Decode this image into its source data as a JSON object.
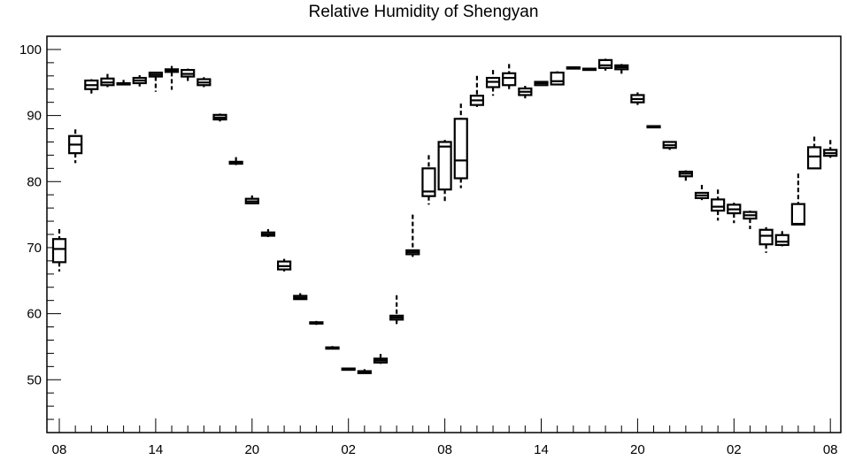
{
  "chart_data": {
    "type": "box",
    "title": "Relative Humidity of Shengyan",
    "xlabel": "",
    "ylabel": "",
    "ylim": [
      42,
      102
    ],
    "yticks": [
      50,
      60,
      70,
      80,
      90,
      100
    ],
    "xtick_labels": [
      "08",
      "14",
      "20",
      "02",
      "08",
      "14",
      "20",
      "02",
      "08"
    ],
    "xtick_hours": [
      0,
      6,
      12,
      18,
      24,
      30,
      36,
      42,
      48
    ],
    "grid": false,
    "boxes": [
      {
        "hour": 0,
        "min": 66.4,
        "q1": 67.8,
        "median": 69.8,
        "q3": 71.3,
        "max": 72.8
      },
      {
        "hour": 1,
        "min": 82.8,
        "q1": 84.3,
        "median": 85.6,
        "q3": 86.9,
        "max": 87.9
      },
      {
        "hour": 2,
        "min": 93.3,
        "q1": 94.0,
        "median": 94.6,
        "q3": 95.3,
        "max": 95.5
      },
      {
        "hour": 3,
        "min": 94.3,
        "q1": 94.6,
        "median": 95.0,
        "q3": 95.6,
        "max": 96.3
      },
      {
        "hour": 4,
        "min": 94.6,
        "q1": 94.7,
        "median": 94.8,
        "q3": 94.9,
        "max": 95.4
      },
      {
        "hour": 5,
        "min": 94.4,
        "q1": 94.9,
        "median": 95.3,
        "q3": 95.7,
        "max": 96.1
      },
      {
        "hour": 6,
        "min": 93.6,
        "q1": 95.9,
        "median": 96.2,
        "q3": 96.5,
        "max": 96.6
      },
      {
        "hour": 7,
        "min": 93.9,
        "q1": 96.6,
        "median": 96.8,
        "q3": 97.0,
        "max": 97.5
      },
      {
        "hour": 8,
        "min": 95.0,
        "q1": 95.9,
        "median": 96.3,
        "q3": 96.9,
        "max": 97.1
      },
      {
        "hour": 9,
        "min": 94.3,
        "q1": 94.6,
        "median": 95.0,
        "q3": 95.5,
        "max": 95.8
      },
      {
        "hour": 10,
        "min": 89.1,
        "q1": 89.4,
        "median": 89.7,
        "q3": 90.1,
        "max": 90.3
      },
      {
        "hour": 11,
        "min": 82.5,
        "q1": 82.7,
        "median": 82.8,
        "q3": 83.0,
        "max": 83.7
      },
      {
        "hour": 12,
        "min": 76.6,
        "q1": 76.7,
        "median": 77.0,
        "q3": 77.4,
        "max": 77.9
      },
      {
        "hour": 13,
        "min": 71.6,
        "q1": 71.8,
        "median": 72.0,
        "q3": 72.3,
        "max": 72.8
      },
      {
        "hour": 14,
        "min": 66.4,
        "q1": 66.7,
        "median": 67.2,
        "q3": 67.9,
        "max": 68.3
      },
      {
        "hour": 15,
        "min": 62.1,
        "q1": 62.2,
        "median": 62.4,
        "q3": 62.7,
        "max": 63.1
      },
      {
        "hour": 16,
        "min": 58.3,
        "q1": 58.5,
        "median": 58.6,
        "q3": 58.7,
        "max": 58.9
      },
      {
        "hour": 17,
        "min": 54.6,
        "q1": 54.7,
        "median": 54.8,
        "q3": 54.9,
        "max": 55.1
      },
      {
        "hour": 18,
        "min": 51.4,
        "q1": 51.5,
        "median": 51.6,
        "q3": 51.7,
        "max": 51.8
      },
      {
        "hour": 19,
        "min": 50.9,
        "q1": 51.0,
        "median": 51.1,
        "q3": 51.3,
        "max": 51.6
      },
      {
        "hour": 20,
        "min": 52.4,
        "q1": 52.6,
        "median": 52.9,
        "q3": 53.2,
        "max": 53.9
      },
      {
        "hour": 21,
        "min": 58.4,
        "q1": 59.1,
        "median": 59.4,
        "q3": 59.7,
        "max": 62.8
      },
      {
        "hour": 22,
        "min": 68.6,
        "q1": 69.0,
        "median": 69.3,
        "q3": 69.6,
        "max": 75.0
      },
      {
        "hour": 23,
        "min": 76.5,
        "q1": 77.8,
        "median": 78.5,
        "q3": 82.0,
        "max": 84.0
      },
      {
        "hour": 24,
        "min": 76.8,
        "q1": 78.8,
        "median": 85.3,
        "q3": 86.0,
        "max": 86.3
      },
      {
        "hour": 25,
        "min": 79.0,
        "q1": 80.5,
        "median": 83.2,
        "q3": 89.5,
        "max": 91.8
      },
      {
        "hour": 26,
        "min": 91.3,
        "q1": 91.6,
        "median": 92.3,
        "q3": 93.0,
        "max": 96.0
      },
      {
        "hour": 27,
        "min": 93.0,
        "q1": 94.3,
        "median": 95.1,
        "q3": 95.7,
        "max": 96.9
      },
      {
        "hour": 28,
        "min": 94.0,
        "q1": 94.6,
        "median": 95.7,
        "q3": 96.4,
        "max": 97.8
      },
      {
        "hour": 29,
        "min": 92.6,
        "q1": 93.1,
        "median": 93.6,
        "q3": 94.1,
        "max": 94.5
      },
      {
        "hour": 30,
        "min": 94.5,
        "q1": 94.6,
        "median": 94.9,
        "q3": 95.1,
        "max": 95.2
      },
      {
        "hour": 31,
        "min": 94.6,
        "q1": 94.7,
        "median": 95.2,
        "q3": 96.5,
        "max": 96.7
      },
      {
        "hour": 32,
        "min": 97.0,
        "q1": 97.1,
        "median": 97.2,
        "q3": 97.3,
        "max": 97.4
      },
      {
        "hour": 33,
        "min": 96.8,
        "q1": 96.9,
        "median": 97.0,
        "q3": 97.1,
        "max": 97.2
      },
      {
        "hour": 34,
        "min": 96.8,
        "q1": 97.2,
        "median": 97.6,
        "q3": 98.4,
        "max": 98.6
      },
      {
        "hour": 35,
        "min": 96.2,
        "q1": 97.0,
        "median": 97.3,
        "q3": 97.6,
        "max": 97.8
      },
      {
        "hour": 36,
        "min": 91.6,
        "q1": 92.0,
        "median": 92.5,
        "q3": 93.1,
        "max": 93.5
      },
      {
        "hour": 37,
        "min": 88.1,
        "q1": 88.2,
        "median": 88.3,
        "q3": 88.4,
        "max": 88.5
      },
      {
        "hour": 38,
        "min": 84.8,
        "q1": 85.1,
        "median": 85.5,
        "q3": 86.0,
        "max": 86.1
      },
      {
        "hour": 39,
        "min": 80.0,
        "q1": 80.8,
        "median": 81.2,
        "q3": 81.5,
        "max": 81.7
      },
      {
        "hour": 40,
        "min": 77.2,
        "q1": 77.5,
        "median": 77.9,
        "q3": 78.3,
        "max": 79.5
      },
      {
        "hour": 41,
        "min": 74.1,
        "q1": 75.6,
        "median": 76.2,
        "q3": 77.3,
        "max": 78.8
      },
      {
        "hour": 42,
        "min": 73.7,
        "q1": 75.2,
        "median": 75.8,
        "q3": 76.5,
        "max": 76.8
      },
      {
        "hour": 43,
        "min": 72.8,
        "q1": 74.4,
        "median": 74.9,
        "q3": 75.4,
        "max": 75.6
      },
      {
        "hour": 44,
        "min": 69.2,
        "q1": 70.5,
        "median": 71.8,
        "q3": 72.7,
        "max": 73.1
      },
      {
        "hour": 45,
        "min": 70.2,
        "q1": 70.4,
        "median": 70.9,
        "q3": 71.9,
        "max": 72.5
      },
      {
        "hour": 46,
        "min": 73.4,
        "q1": 73.5,
        "median": 73.6,
        "q3": 76.6,
        "max": 81.2
      },
      {
        "hour": 47,
        "min": 81.9,
        "q1": 82.0,
        "median": 83.8,
        "q3": 85.2,
        "max": 86.8
      },
      {
        "hour": 48,
        "min": 83.6,
        "q1": 83.9,
        "median": 84.3,
        "q3": 84.8,
        "max": 86.3
      }
    ]
  }
}
